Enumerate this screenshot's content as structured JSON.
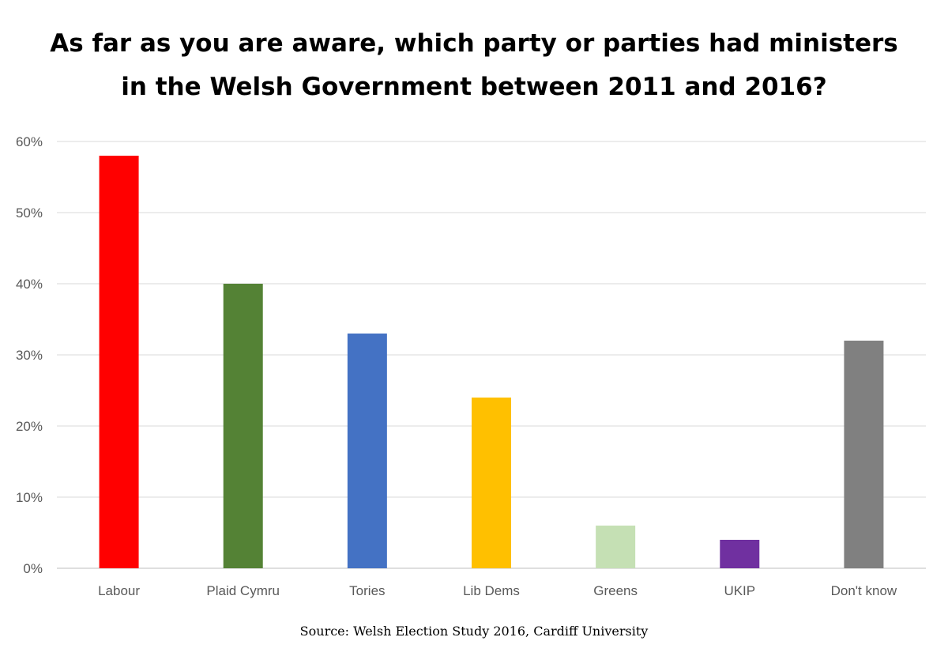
{
  "title_lines": [
    "As far as you are aware, which party or parties had ministers",
    "in the Welsh Government between 2011 and 2016?"
  ],
  "source": "Source: Welsh Election Study 2016, Cardiff University",
  "chart_data": {
    "type": "bar",
    "title": "As far as you are aware, which party or parties had ministers in the Welsh Government between 2011 and 2016?",
    "categories": [
      "Labour",
      "Plaid Cymru",
      "Tories",
      "Lib Dems",
      "Greens",
      "UKIP",
      "Don't know"
    ],
    "values": [
      58,
      40,
      33,
      24,
      6,
      4,
      32
    ],
    "colors": [
      "#ff0000",
      "#548235",
      "#4472c4",
      "#ffc000",
      "#c5e0b4",
      "#7030a0",
      "#808080"
    ],
    "ylim": [
      0,
      60
    ],
    "yticks": [
      0,
      10,
      20,
      30,
      40,
      50,
      60
    ],
    "ytick_labels": [
      "0%",
      "10%",
      "20%",
      "30%",
      "40%",
      "50%",
      "60%"
    ],
    "xlabel": "",
    "ylabel": "",
    "grid": true,
    "legend": "none"
  }
}
